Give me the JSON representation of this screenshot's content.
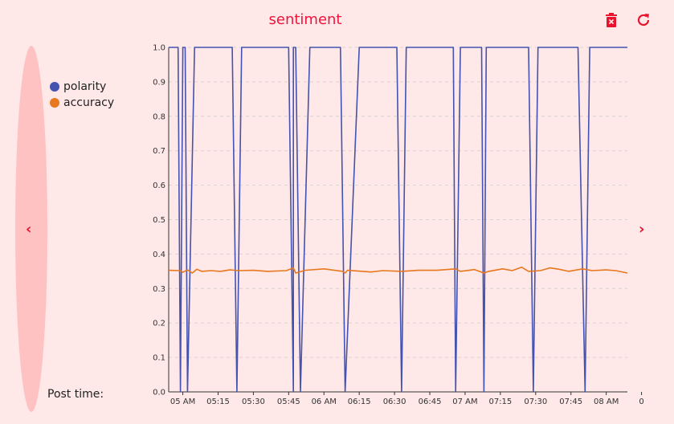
{
  "header": {
    "title": "sentiment",
    "delete_icon": "trash-icon",
    "refresh_icon": "refresh-icon"
  },
  "nav": {
    "prev": "‹",
    "next": "›"
  },
  "colors": {
    "polarity": "#4452b0",
    "accuracy": "#e8781e",
    "title": "#f0143c"
  },
  "footer": {
    "post_time_label": "Post time:"
  },
  "chart_data": {
    "type": "line",
    "ylim": [
      0,
      1
    ],
    "yticks": [
      "0.0",
      "0.1",
      "0.2",
      "0.3",
      "0.4",
      "0.5",
      "0.6",
      "0.7",
      "0.8",
      "0.9",
      "1.0"
    ],
    "xticks": [
      "05 AM",
      "05:15",
      "05:30",
      "05:45",
      "06 AM",
      "06:15",
      "06:30",
      "06:45",
      "07 AM",
      "07:15",
      "07:30",
      "07:45",
      "08 AM",
      "0"
    ],
    "xlim": [
      "04:54",
      "08:09"
    ],
    "legend": "left",
    "grid": true,
    "series": [
      {
        "name": "polarity",
        "points": [
          [
            "04:54",
            1.0
          ],
          [
            "04:58",
            1.0
          ],
          [
            "04:59",
            0.0
          ],
          [
            "05:00",
            1.0
          ],
          [
            "05:01",
            1.0
          ],
          [
            "05:02",
            0.0
          ],
          [
            "05:05",
            1.0
          ],
          [
            "05:21",
            1.0
          ],
          [
            "05:23",
            0.0
          ],
          [
            "05:25",
            1.0
          ],
          [
            "05:45",
            1.0
          ],
          [
            "05:47",
            0.0
          ],
          [
            "05:47",
            1.0
          ],
          [
            "05:48",
            1.0
          ],
          [
            "05:50",
            0.0
          ],
          [
            "05:54",
            1.0
          ],
          [
            "06:07",
            1.0
          ],
          [
            "06:09",
            0.0
          ],
          [
            "06:15",
            1.0
          ],
          [
            "06:31",
            1.0
          ],
          [
            "06:33",
            0.0
          ],
          [
            "06:35",
            1.0
          ],
          [
            "06:55",
            1.0
          ],
          [
            "06:56",
            0.0
          ],
          [
            "06:58",
            1.0
          ],
          [
            "07:07",
            1.0
          ],
          [
            "07:08",
            0.0
          ],
          [
            "07:09",
            1.0
          ],
          [
            "07:27",
            1.0
          ],
          [
            "07:29",
            0.0
          ],
          [
            "07:31",
            1.0
          ],
          [
            "07:48",
            1.0
          ],
          [
            "07:51",
            0.0
          ],
          [
            "07:53",
            1.0
          ],
          [
            "08:09",
            1.0
          ]
        ]
      },
      {
        "name": "accuracy",
        "points": [
          [
            "04:54",
            0.353
          ],
          [
            "04:59",
            0.352
          ],
          [
            "05:00",
            0.347
          ],
          [
            "05:02",
            0.354
          ],
          [
            "05:04",
            0.345
          ],
          [
            "05:06",
            0.356
          ],
          [
            "05:08",
            0.35
          ],
          [
            "05:12",
            0.352
          ],
          [
            "05:16",
            0.35
          ],
          [
            "05:20",
            0.354
          ],
          [
            "05:24",
            0.352
          ],
          [
            "05:30",
            0.353
          ],
          [
            "05:36",
            0.35
          ],
          [
            "05:44",
            0.352
          ],
          [
            "05:47",
            0.36
          ],
          [
            "05:48",
            0.345
          ],
          [
            "05:52",
            0.353
          ],
          [
            "06:00",
            0.357
          ],
          [
            "06:08",
            0.35
          ],
          [
            "06:09",
            0.345
          ],
          [
            "06:10",
            0.353
          ],
          [
            "06:20",
            0.348
          ],
          [
            "06:25",
            0.352
          ],
          [
            "06:33",
            0.35
          ],
          [
            "06:40",
            0.353
          ],
          [
            "06:48",
            0.353
          ],
          [
            "06:56",
            0.357
          ],
          [
            "06:58",
            0.35
          ],
          [
            "07:04",
            0.355
          ],
          [
            "07:08",
            0.345
          ],
          [
            "07:10",
            0.35
          ],
          [
            "07:16",
            0.357
          ],
          [
            "07:20",
            0.352
          ],
          [
            "07:24",
            0.362
          ],
          [
            "07:27",
            0.35
          ],
          [
            "07:32",
            0.352
          ],
          [
            "07:36",
            0.36
          ],
          [
            "07:40",
            0.356
          ],
          [
            "07:44",
            0.35
          ],
          [
            "07:50",
            0.357
          ],
          [
            "07:54",
            0.352
          ],
          [
            "08:00",
            0.354
          ],
          [
            "08:04",
            0.352
          ],
          [
            "08:09",
            0.345
          ]
        ]
      }
    ]
  }
}
